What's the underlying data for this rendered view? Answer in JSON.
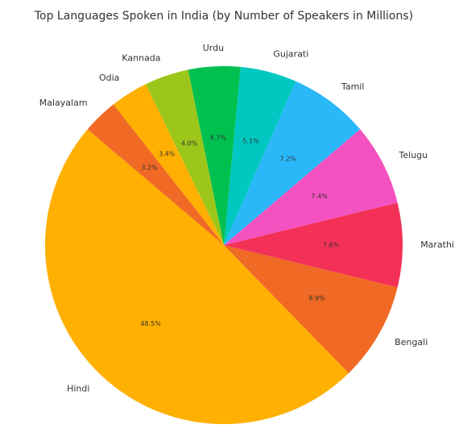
{
  "chart_data": {
    "type": "pie",
    "title": "Top Languages Spoken in India (by Number of Speakers in Millions)",
    "categories": [
      "Hindi",
      "Bengali",
      "Marathi",
      "Telugu",
      "Tamil",
      "Gujarati",
      "Urdu",
      "Kannada",
      "Odia",
      "Malayalam"
    ],
    "values": [
      48.5,
      8.9,
      7.6,
      7.4,
      7.2,
      5.1,
      4.7,
      4.0,
      3.4,
      3.2
    ],
    "value_labels": [
      "48.5%",
      "8.9%",
      "7.6%",
      "7.4%",
      "7.2%",
      "5.1%",
      "4.7%",
      "4.0%",
      "3.4%",
      "3.2%"
    ],
    "colors": [
      "#ffb000",
      "#f06a25",
      "#f33157",
      "#f452c0",
      "#2ab8f9",
      "#00c8c0",
      "#00c050",
      "#9cc61a",
      "#ffb000",
      "#f06a25"
    ]
  }
}
